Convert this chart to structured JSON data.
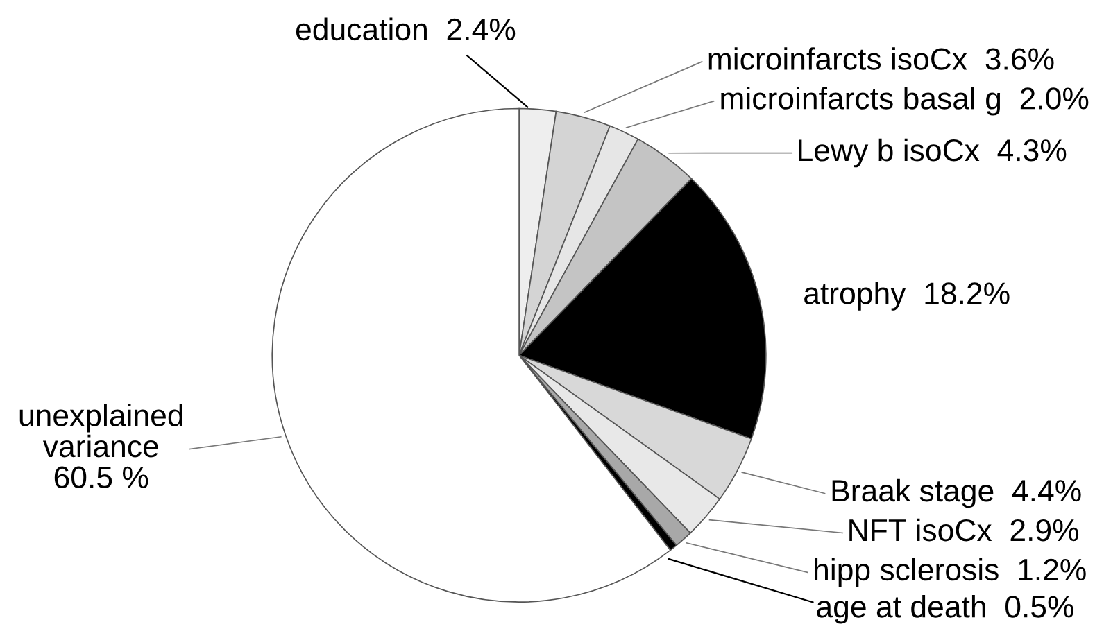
{
  "chart_data": {
    "type": "pie",
    "categories": [
      "education",
      "microinfarcts isoCx",
      "microinfarcts basal g",
      "Lewy b isoCx",
      "atrophy",
      "Braak stage",
      "NFT isoCx",
      "hipp sclerosis",
      "age at death",
      "unexplained\nvariance"
    ],
    "values": [
      2.4,
      3.6,
      2.0,
      4.3,
      18.2,
      4.4,
      2.9,
      1.2,
      0.5,
      60.5
    ],
    "value_labels": [
      "2.4%",
      "3.6%",
      "2.0%",
      "4.3%",
      "18.2%",
      "4.4%",
      "2.9%",
      "1.2%",
      "0.5%",
      "60.5 %"
    ],
    "colors": [
      "#eeeeee",
      "#d4d4d4",
      "#e6e6e6",
      "#c4c4c4",
      "#000000",
      "#d8d8d8",
      "#e8e8e8",
      "#a8a8a8",
      "#000000",
      "#ffffff"
    ]
  }
}
